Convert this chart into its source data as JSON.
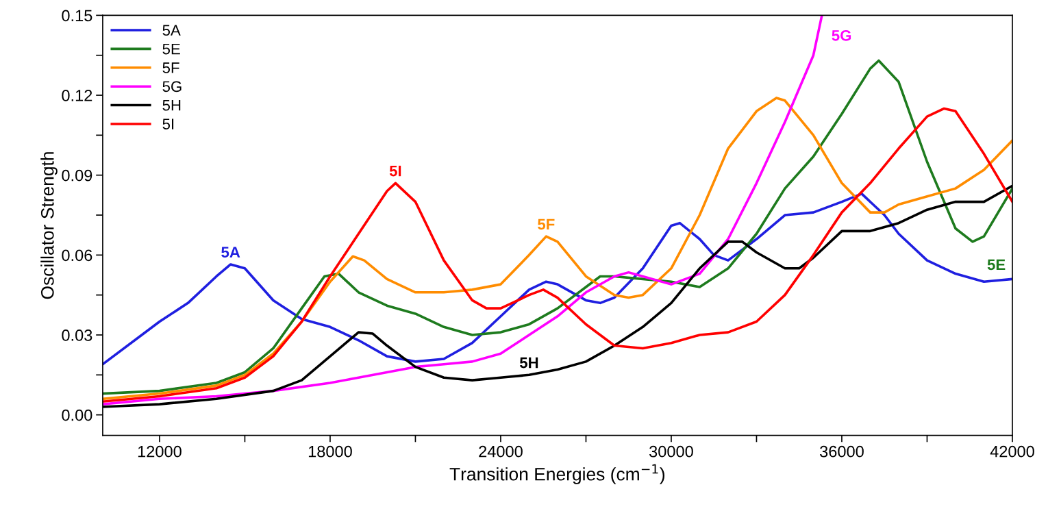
{
  "chart_data": {
    "type": "line",
    "xlabel": "Transition Energies (cm$^{−1}$)",
    "ylabel": "Oscillator Strength",
    "xlim": [
      10000,
      42000
    ],
    "ylim": [
      -0.0077,
      0.15
    ],
    "xticks": [
      12000,
      {
        "value": 15000,
        "label": null
      },
      18000,
      {
        "value": 21000,
        "label": null
      },
      24000,
      {
        "value": 27000,
        "label": null
      },
      30000,
      {
        "value": 33000,
        "label": null
      },
      36000,
      {
        "value": 39000,
        "label": null
      },
      42000
    ],
    "yticks": [
      "0.00",
      {
        "value": 0.015,
        "label": null
      },
      {
        "value": 0.03,
        "label": "0.03"
      },
      {
        "value": 0.045,
        "label": null
      },
      {
        "value": 0.06,
        "label": "0.06"
      },
      {
        "value": 0.075,
        "label": null
      },
      {
        "value": 0.09,
        "label": "0.09"
      },
      {
        "value": 0.105,
        "label": null
      },
      {
        "value": 0.12,
        "label": "0.12"
      },
      {
        "value": 0.135,
        "label": null
      },
      {
        "value": 0.15,
        "label": "0.15"
      }
    ],
    "grid": false,
    "legend": "top left",
    "line_style": "solid",
    "marker": "none",
    "series": [
      {
        "name": "5A",
        "color": "#1f1fe0",
        "x": [
          10000,
          12000,
          13000,
          14000,
          14500,
          15000,
          16000,
          17000,
          18000,
          19000,
          20000,
          21000,
          22000,
          23000,
          24000,
          25000,
          25600,
          26000,
          27000,
          27500,
          28000,
          29000,
          30000,
          30300,
          31000,
          31500,
          32000,
          33000,
          34000,
          35000,
          36000,
          36700,
          37500,
          38000,
          39000,
          40000,
          41000,
          42000
        ],
        "values": [
          0.019,
          0.035,
          0.042,
          0.052,
          0.0565,
          0.055,
          0.043,
          0.036,
          0.033,
          0.028,
          0.022,
          0.02,
          0.021,
          0.027,
          0.037,
          0.047,
          0.05,
          0.049,
          0.043,
          0.042,
          0.044,
          0.055,
          0.071,
          0.072,
          0.066,
          0.06,
          0.058,
          0.066,
          0.075,
          0.076,
          0.08,
          0.083,
          0.075,
          0.068,
          0.058,
          0.053,
          0.05,
          0.051
        ]
      },
      {
        "name": "5E",
        "color": "#1e7b1e",
        "x": [
          10000,
          12000,
          14000,
          15000,
          16000,
          17000,
          17800,
          18300,
          19000,
          20000,
          21000,
          22000,
          23000,
          24000,
          25000,
          26000,
          27000,
          27500,
          28000,
          29000,
          30000,
          31000,
          32000,
          33000,
          34000,
          35000,
          36000,
          37000,
          37300,
          38000,
          39000,
          40000,
          40600,
          41000,
          42000
        ],
        "values": [
          0.008,
          0.009,
          0.012,
          0.016,
          0.025,
          0.04,
          0.052,
          0.053,
          0.046,
          0.041,
          0.038,
          0.033,
          0.03,
          0.031,
          0.034,
          0.04,
          0.048,
          0.052,
          0.052,
          0.051,
          0.05,
          0.048,
          0.055,
          0.068,
          0.085,
          0.097,
          0.113,
          0.13,
          0.133,
          0.125,
          0.095,
          0.07,
          0.065,
          0.067,
          0.085
        ]
      },
      {
        "name": "5F",
        "color": "#ff8c00",
        "x": [
          10000,
          12000,
          14000,
          15000,
          16000,
          17000,
          18000,
          18800,
          19200,
          20000,
          21000,
          22000,
          23000,
          24000,
          25000,
          25600,
          26000,
          27000,
          28000,
          28500,
          29000,
          30000,
          31000,
          32000,
          33000,
          33700,
          34000,
          35000,
          36000,
          37000,
          37500,
          38000,
          39000,
          40000,
          41000,
          42000
        ],
        "values": [
          0.006,
          0.008,
          0.011,
          0.015,
          0.023,
          0.035,
          0.05,
          0.0595,
          0.058,
          0.051,
          0.046,
          0.046,
          0.047,
          0.049,
          0.06,
          0.067,
          0.065,
          0.052,
          0.045,
          0.044,
          0.045,
          0.055,
          0.075,
          0.1,
          0.114,
          0.119,
          0.118,
          0.105,
          0.087,
          0.076,
          0.076,
          0.079,
          0.082,
          0.085,
          0.092,
          0.103
        ]
      },
      {
        "name": "5G",
        "color": "#ff00ff",
        "x": [
          10000,
          12000,
          14000,
          16000,
          18000,
          19000,
          20000,
          21000,
          22000,
          23000,
          24000,
          25000,
          26000,
          27000,
          28000,
          28500,
          29000,
          30000,
          31000,
          32000,
          33000,
          34000,
          35000,
          35300
        ],
        "values": [
          0.004,
          0.006,
          0.007,
          0.009,
          0.012,
          0.014,
          0.016,
          0.018,
          0.019,
          0.02,
          0.023,
          0.03,
          0.037,
          0.046,
          0.052,
          0.0535,
          0.052,
          0.049,
          0.053,
          0.066,
          0.087,
          0.11,
          0.135,
          0.15
        ]
      },
      {
        "name": "5H",
        "color": "#000000",
        "x": [
          10000,
          12000,
          14000,
          16000,
          17000,
          18000,
          19000,
          19500,
          20000,
          21000,
          22000,
          23000,
          24000,
          25000,
          26000,
          27000,
          28000,
          29000,
          30000,
          31000,
          32000,
          32500,
          33000,
          34000,
          34500,
          35000,
          36000,
          37000,
          38000,
          39000,
          40000,
          41000,
          42000
        ],
        "values": [
          0.003,
          0.004,
          0.006,
          0.009,
          0.013,
          0.022,
          0.031,
          0.0305,
          0.026,
          0.018,
          0.014,
          0.013,
          0.014,
          0.015,
          0.017,
          0.02,
          0.026,
          0.033,
          0.042,
          0.055,
          0.065,
          0.065,
          0.061,
          0.055,
          0.055,
          0.059,
          0.069,
          0.069,
          0.072,
          0.077,
          0.08,
          0.08,
          0.086
        ]
      },
      {
        "name": "5I",
        "color": "#ff0000",
        "x": [
          10000,
          12000,
          14000,
          15000,
          16000,
          17000,
          18000,
          19000,
          20000,
          20300,
          21000,
          22000,
          23000,
          23500,
          24000,
          25000,
          25500,
          26000,
          27000,
          28000,
          29000,
          30000,
          31000,
          32000,
          33000,
          34000,
          35000,
          36000,
          37000,
          38000,
          39000,
          39600,
          40000,
          41000,
          42000
        ],
        "values": [
          0.005,
          0.007,
          0.01,
          0.014,
          0.022,
          0.035,
          0.052,
          0.068,
          0.084,
          0.087,
          0.08,
          0.058,
          0.043,
          0.04,
          0.04,
          0.045,
          0.047,
          0.044,
          0.034,
          0.026,
          0.025,
          0.027,
          0.03,
          0.031,
          0.035,
          0.045,
          0.06,
          0.076,
          0.087,
          0.1,
          0.112,
          0.115,
          0.114,
          0.098,
          0.08
        ]
      }
    ],
    "annotations": [
      {
        "text": "5A",
        "x": 14500,
        "y": 0.0565
      },
      {
        "text": "5I",
        "x": 20300,
        "y": 0.087
      },
      {
        "text": "5F",
        "x": 25600,
        "y": 0.067
      },
      {
        "text": "5H",
        "x": 25000,
        "y": 0.015
      },
      {
        "text": "5G",
        "x": 35300,
        "y": 0.15
      },
      {
        "text": "5E",
        "x": 40600,
        "y": 0.065
      }
    ]
  }
}
